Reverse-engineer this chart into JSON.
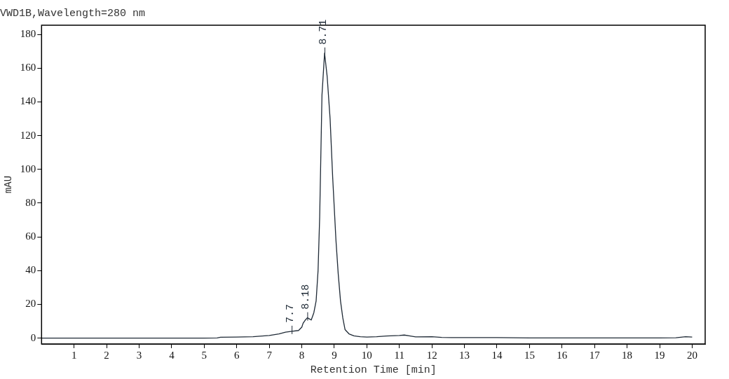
{
  "chart_data": {
    "type": "line",
    "title": "VWD1B,Wavelength=280 nm",
    "xlabel": "Retention Time [min]",
    "ylabel": "mAU",
    "xlim": [
      0,
      20.4
    ],
    "xticks": [
      1,
      2,
      3,
      4,
      5,
      6,
      7,
      8,
      9,
      10,
      11,
      12,
      13,
      14,
      15,
      16,
      17,
      18,
      19,
      20
    ],
    "ylim": [
      -3.5,
      185.5
    ],
    "yticks": [
      0,
      20,
      40,
      60,
      80,
      100,
      120,
      140,
      160,
      180
    ],
    "grid": false,
    "legend": false,
    "marker": "none",
    "line_style": "solid",
    "series": [
      {
        "color": "#1f2a36",
        "x": [
          0,
          1,
          2,
          3,
          4,
          5,
          5.4,
          5.5,
          6,
          6.5,
          7,
          7.3,
          7.5,
          7.7,
          7.9,
          8.0,
          8.04,
          8.1,
          8.17,
          8.22,
          8.29,
          8.37,
          8.44,
          8.5,
          8.55,
          8.62,
          8.7,
          8.78,
          8.87,
          8.95,
          9.05,
          9.12,
          9.19,
          9.26,
          9.33,
          9.45,
          9.6,
          9.8,
          10,
          10.3,
          10.6,
          11,
          11.15,
          11.3,
          11.5,
          12,
          12.3,
          12.6,
          13,
          14,
          14.5,
          15,
          16,
          17,
          18,
          19,
          19.5,
          19.8,
          20
        ],
        "values": [
          0,
          0,
          0,
          0,
          0,
          0,
          0.1,
          0.5,
          0.6,
          0.8,
          1.5,
          2.5,
          3.5,
          4,
          4.5,
          6.5,
          8.8,
          10.5,
          12,
          11.5,
          10.7,
          15,
          22,
          40,
          72,
          144,
          169,
          155,
          130,
          95,
          58,
          38,
          22,
          12,
          5,
          2.5,
          1.3,
          0.8,
          0.6,
          0.8,
          1.2,
          1.5,
          1.8,
          1.3,
          0.7,
          0.8,
          0.4,
          0.3,
          0.3,
          0.3,
          0.2,
          0.1,
          0.1,
          0.1,
          0.1,
          0.1,
          0.2,
          0.8,
          0.6
        ]
      }
    ],
    "annotations": [
      {
        "text": "7.7",
        "x": 7.7,
        "y": 4
      },
      {
        "text": "8.18",
        "x": 8.18,
        "y": 12
      },
      {
        "text": "8.71",
        "x": 8.71,
        "y": 169
      }
    ]
  }
}
